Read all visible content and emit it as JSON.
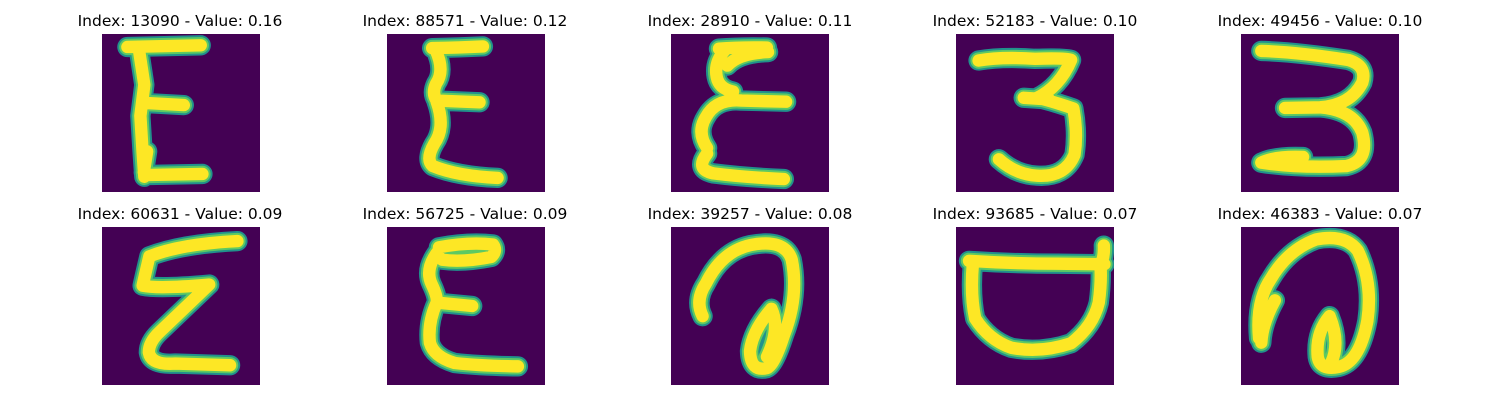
{
  "figure": {
    "panels": [
      {
        "title": "Index: 13090 - Value: 0.16",
        "glyph": "E-block-icon"
      },
      {
        "title": "Index: 88571 - Value: 0.12",
        "glyph": "E-curly-icon"
      },
      {
        "title": "Index: 28910 - Value: 0.11",
        "glyph": "E-cursive-icon"
      },
      {
        "title": "Index: 52183 - Value: 0.10",
        "glyph": "three-icon"
      },
      {
        "title": "Index: 49456 - Value: 0.10",
        "glyph": "three-wide-icon"
      },
      {
        "title": "Index: 60631 - Value: 0.09",
        "glyph": "E-zigzag-icon"
      },
      {
        "title": "Index: 56725 - Value: 0.09",
        "glyph": "E-round-icon"
      },
      {
        "title": "Index: 39257 - Value: 0.08",
        "glyph": "loop-a-icon"
      },
      {
        "title": "Index: 93685 - Value: 0.07",
        "glyph": "cup-icon"
      },
      {
        "title": "Index: 46383 - Value: 0.07",
        "glyph": "loop-a-tall-icon"
      }
    ],
    "colors": {
      "background": "#440154",
      "stroke_outer": "#21918c",
      "stroke_mid": "#5ec962",
      "stroke_core": "#fde725"
    }
  }
}
